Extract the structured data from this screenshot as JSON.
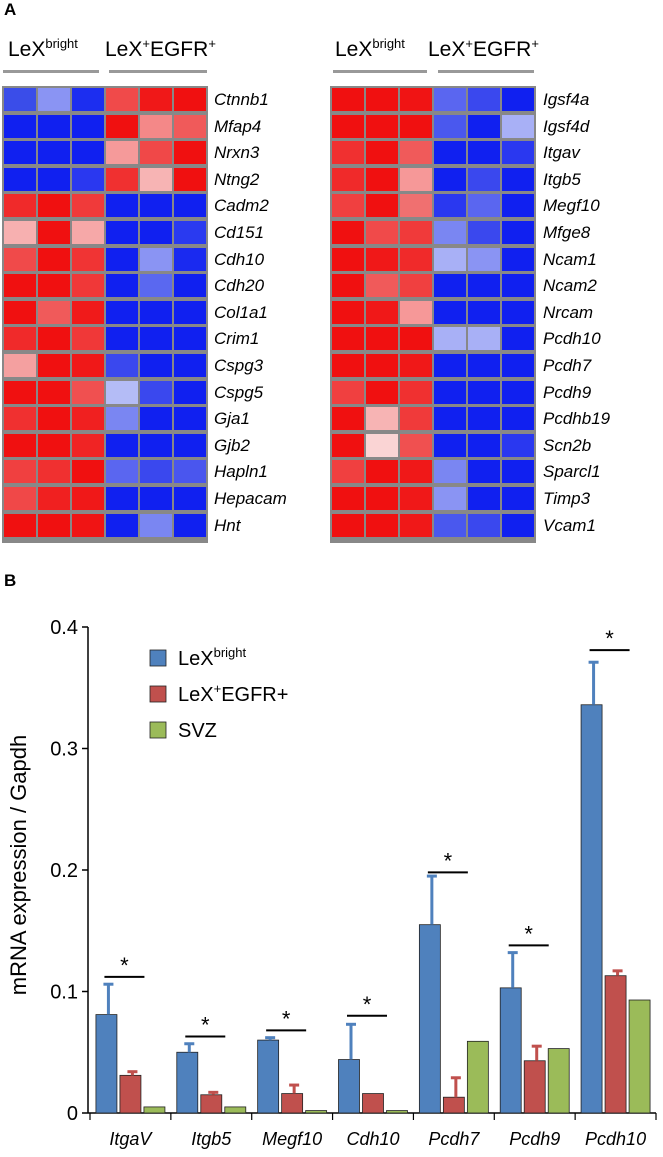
{
  "panelA": {
    "letter": "A",
    "left": {
      "header_lex_base": "LeX",
      "header_lex_sup": "bright",
      "header_egfr_a": "LeX",
      "header_egfr_plus1": "+",
      "header_egfr_b": "EGFR",
      "header_egfr_plus2": "+",
      "genes": [
        "Ctnnb1",
        "Mfap4",
        "Nrxn3",
        "Ntng2",
        "Cadm2",
        "Cd151",
        "Cdh10",
        "Cdh20",
        "Col1a1",
        "Crim1",
        "Cspg3",
        "Cspg5",
        "Gja1",
        "Gjb2",
        "Hapln1",
        "Hepacam",
        "Hnt"
      ],
      "cells": [
        [
          "#3a4de9",
          "#8a94f3",
          "#1c2ef0",
          "#f04a4a",
          "#f01818",
          "#f01010"
        ],
        [
          "#1020f0",
          "#1020f0",
          "#1020f0",
          "#f01010",
          "#f48888",
          "#f05a5a"
        ],
        [
          "#1020f0",
          "#1020f0",
          "#1020f0",
          "#f59a9a",
          "#f04848",
          "#f01010"
        ],
        [
          "#1020f0",
          "#1020f0",
          "#2a38f0",
          "#f03030",
          "#f7b4b4",
          "#f01010"
        ],
        [
          "#f02a2a",
          "#f01010",
          "#f03a3a",
          "#1020f0",
          "#1020f0",
          "#1020f0"
        ],
        [
          "#f7b0b0",
          "#f01010",
          "#f6a8a8",
          "#1020f0",
          "#1020f0",
          "#2a3af0"
        ],
        [
          "#f04a4a",
          "#f01010",
          "#f03434",
          "#1020f0",
          "#8a94f3",
          "#1a2af0"
        ],
        [
          "#f01010",
          "#f01010",
          "#f03838",
          "#1020f0",
          "#5a68f0",
          "#1020f0"
        ],
        [
          "#f01010",
          "#f05a5a",
          "#f01a1a",
          "#1020f0",
          "#1020f0",
          "#1020f0"
        ],
        [
          "#f02a2a",
          "#f01010",
          "#f03838",
          "#1020f0",
          "#1020f0",
          "#1020f0"
        ],
        [
          "#f4a0a0",
          "#f01010",
          "#f01818",
          "#3a48ee",
          "#1020f0",
          "#1020f0"
        ],
        [
          "#f01010",
          "#f01010",
          "#f05050",
          "#b4bcf6",
          "#3a48ee",
          "#1020f0"
        ],
        [
          "#f03030",
          "#f01010",
          "#f02020",
          "#7a86f2",
          "#1020f0",
          "#1020f0"
        ],
        [
          "#f01010",
          "#f01010",
          "#f02424",
          "#1020f0",
          "#1020f0",
          "#1020f0"
        ],
        [
          "#f04040",
          "#f03030",
          "#f01010",
          "#5a66f0",
          "#3a48ee",
          "#4a56ee"
        ],
        [
          "#f04848",
          "#f02020",
          "#f01818",
          "#1020f0",
          "#1020f0",
          "#1020f0"
        ],
        [
          "#f01010",
          "#f01010",
          "#f01414",
          "#1020f0",
          "#7a86f2",
          "#1020f0"
        ]
      ]
    },
    "right": {
      "header_lex_base": "LeX",
      "header_lex_sup": "bright",
      "header_egfr_a": "LeX",
      "header_egfr_plus1": "+",
      "header_egfr_b": "EGFR",
      "header_egfr_plus2": "+",
      "genes": [
        "Igsf4a",
        "Igsf4d",
        "Itgav",
        "Itgb5",
        "Megf10",
        "Mfge8",
        "Ncam1",
        "Ncam2",
        "Nrcam",
        "Pcdh10",
        "Pcdh7",
        "Pcdh9",
        "Pcdhb19",
        "Scn2b",
        "Sparcl1",
        "Timp3",
        "Vcam1"
      ],
      "cells": [
        [
          "#f01010",
          "#f01010",
          "#f01414",
          "#5a66f0",
          "#3a48ee",
          "#1020f0"
        ],
        [
          "#f01010",
          "#f01010",
          "#f01010",
          "#4a58ee",
          "#1020f0",
          "#a8b0f6"
        ],
        [
          "#f03030",
          "#f01010",
          "#f05a5a",
          "#1020f0",
          "#1020f0",
          "#2a38f0"
        ],
        [
          "#f02a2a",
          "#f01010",
          "#f69898",
          "#1020f0",
          "#3a48ee",
          "#1020f0"
        ],
        [
          "#f04040",
          "#f01010",
          "#f07070",
          "#2a38f0",
          "#5a66f0",
          "#1020f0"
        ],
        [
          "#f01010",
          "#f04a4a",
          "#f03a3a",
          "#7a86f2",
          "#3a48ee",
          "#1020f0"
        ],
        [
          "#f01010",
          "#f01818",
          "#f02a2a",
          "#a8b0f6",
          "#8a94f3",
          "#1020f0"
        ],
        [
          "#f01010",
          "#f05a5a",
          "#f04040",
          "#1020f0",
          "#1020f0",
          "#1020f0"
        ],
        [
          "#f01010",
          "#f01818",
          "#f69898",
          "#1020f0",
          "#1020f0",
          "#1020f0"
        ],
        [
          "#f01010",
          "#f01010",
          "#f01010",
          "#a8b0f6",
          "#a8b0f6",
          "#1020f0"
        ],
        [
          "#f01010",
          "#f01010",
          "#f01818",
          "#1020f0",
          "#1020f0",
          "#1020f0"
        ],
        [
          "#f04040",
          "#f01010",
          "#f03030",
          "#1020f0",
          "#1020f0",
          "#1020f0"
        ],
        [
          "#f01010",
          "#f7b4b4",
          "#f03a3a",
          "#1020f0",
          "#1020f0",
          "#1020f0"
        ],
        [
          "#f01010",
          "#fad4d4",
          "#f05050",
          "#1020f0",
          "#1020f0",
          "#2a38f0"
        ],
        [
          "#f04040",
          "#f01010",
          "#f01818",
          "#7a86f2",
          "#1020f0",
          "#1020f0"
        ],
        [
          "#f01010",
          "#f01010",
          "#f01818",
          "#8a94f3",
          "#1020f0",
          "#1020f0"
        ],
        [
          "#f01010",
          "#f01010",
          "#f01818",
          "#4a58ee",
          "#3a48ee",
          "#1020f0"
        ]
      ]
    }
  },
  "panelB": {
    "letter": "B"
  },
  "chart_data": {
    "type": "bar",
    "ylabel": "mRNA expression / Gapdh",
    "ylim": [
      0,
      0.4
    ],
    "yticks": [
      0,
      0.1,
      0.2,
      0.3,
      0.4
    ],
    "ytick_labels": [
      "0",
      "0.1",
      "0.2",
      "0.3",
      "0.4"
    ],
    "categories": [
      "ItgaV",
      "Itgb5",
      "Megf10",
      "Cdh10",
      "Pcdh7",
      "Pcdh9",
      "Pcdh10"
    ],
    "series": [
      {
        "name": "LeXbright",
        "legend_base": "LeX",
        "legend_sup": "bright",
        "legend_rest": "",
        "color": "#4f81bd",
        "values": [
          0.081,
          0.05,
          0.06,
          0.044,
          0.155,
          0.103,
          0.336
        ],
        "errors": [
          0.025,
          0.007,
          0.002,
          0.029,
          0.04,
          0.029,
          0.035
        ]
      },
      {
        "name": "LeX+EGFR+",
        "legend_base": "LeX",
        "legend_sup": "+",
        "legend_rest": "EGFR+",
        "color": "#c0504d",
        "values": [
          0.031,
          0.015,
          0.016,
          0.016,
          0.013,
          0.043,
          0.113
        ],
        "errors": [
          0.003,
          0.002,
          0.007,
          0.0,
          0.016,
          0.012,
          0.004
        ]
      },
      {
        "name": "SVZ",
        "legend_base": "SVZ",
        "legend_sup": "",
        "legend_rest": "",
        "color": "#9bbb59",
        "values": [
          0.005,
          0.005,
          0.002,
          0.002,
          0.059,
          0.053,
          0.093
        ],
        "errors": [
          0,
          0,
          0,
          0,
          0,
          0,
          0
        ]
      }
    ],
    "significance": [
      {
        "category": "ItgaV",
        "label": "*",
        "y": 0.112
      },
      {
        "category": "Itgb5",
        "label": "*",
        "y": 0.063
      },
      {
        "category": "Megf10",
        "label": "*",
        "y": 0.068
      },
      {
        "category": "Cdh10",
        "label": "*",
        "y": 0.08
      },
      {
        "category": "Pcdh7",
        "label": "*",
        "y": 0.198
      },
      {
        "category": "Pcdh9",
        "label": "*",
        "y": 0.138
      },
      {
        "category": "Pcdh10",
        "label": "*",
        "y": 0.381
      }
    ]
  }
}
